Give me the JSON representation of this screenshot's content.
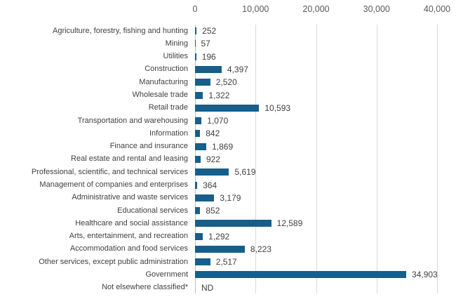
{
  "chart_data": {
    "type": "bar",
    "orientation": "horizontal",
    "title": "",
    "categories": [
      "Agriculture, forestry, fishing and hunting",
      "Mining",
      "Utilities",
      "Construction",
      "Manufacturing",
      "Wholesale trade",
      "Retail trade",
      "Transportation and warehousing",
      "Information",
      "Finance and insurance",
      "Real estate and rental and leasing",
      "Professional, scientific, and technical services",
      "Management of companies and enterprises",
      "Administrative and waste services",
      "Educational services",
      "Healthcare and social assistance",
      "Arts, entertainment, and recreation",
      "Accommodation and food services",
      "Other services, except public administration",
      "Government",
      "Not elsewhere classified*"
    ],
    "values": [
      252,
      57,
      196,
      4397,
      2520,
      1322,
      10593,
      1070,
      842,
      1869,
      922,
      5619,
      364,
      3179,
      852,
      12589,
      1292,
      8223,
      2517,
      34903,
      null
    ],
    "value_labels": [
      "252",
      "57",
      "196",
      "4,397",
      "2,520",
      "1,322",
      "10,593",
      "1,070",
      "842",
      "1,869",
      "922",
      "5,619",
      "364",
      "3,179",
      "852",
      "12,589",
      "1,292",
      "8,223",
      "2,517",
      "34,903",
      "ND"
    ],
    "xlim": [
      0,
      40000
    ],
    "x_axis": {
      "position": "top",
      "ticks": [
        0,
        10000,
        20000,
        30000,
        40000
      ],
      "tick_labels": [
        "0",
        "10,000",
        "20,000",
        "30,000",
        "40,000"
      ]
    },
    "grid": true,
    "legend": false,
    "colors": {
      "bar": "#175E8A",
      "gridline": "#D9D9D9",
      "zero_line": "#C0C0C0",
      "tick_label": "#595959",
      "category_label": "#404040",
      "value_label": "#404040",
      "background": "#FFFFFF"
    }
  }
}
